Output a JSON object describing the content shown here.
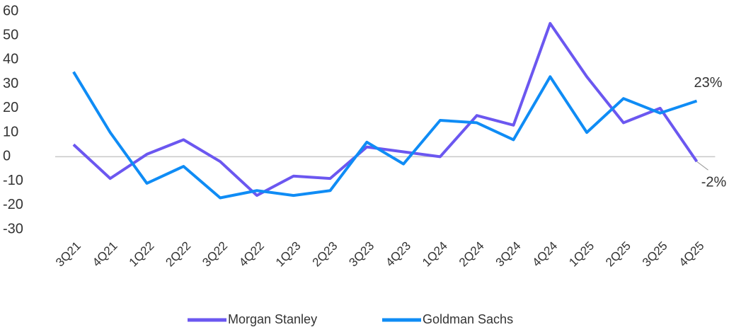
{
  "chart_data": {
    "type": "line",
    "categories": [
      "3Q21",
      "4Q21",
      "1Q22",
      "2Q22",
      "3Q22",
      "4Q22",
      "1Q23",
      "2Q23",
      "3Q23",
      "4Q23",
      "1Q24",
      "2Q24",
      "3Q24",
      "4Q24",
      "1Q25",
      "2Q25",
      "3Q25",
      "4Q25"
    ],
    "series": [
      {
        "name": "Morgan Stanley",
        "color": "#6b57f0",
        "values": [
          5,
          -9,
          1,
          7,
          -2,
          -16,
          -8,
          -9,
          4,
          2,
          0,
          17,
          13,
          55,
          33,
          14,
          20,
          -2
        ],
        "value_labels": [
          null,
          null,
          null,
          null,
          null,
          null,
          null,
          null,
          null,
          null,
          null,
          null,
          null,
          null,
          null,
          null,
          null,
          "-2%"
        ]
      },
      {
        "name": "Goldman Sachs",
        "color": "#0f8cf5",
        "values": [
          35,
          10,
          -11,
          -4,
          -17,
          -14,
          -16,
          -14,
          6,
          -3,
          15,
          14,
          7,
          33,
          10,
          24,
          18,
          23
        ],
        "value_labels": [
          null,
          null,
          null,
          null,
          null,
          null,
          null,
          null,
          null,
          null,
          null,
          null,
          null,
          null,
          null,
          null,
          null,
          "23%"
        ]
      }
    ],
    "ylim": [
      -30,
      60
    ],
    "yticks": [
      60,
      50,
      40,
      30,
      20,
      10,
      0,
      -10,
      -20,
      -30
    ],
    "grid": false,
    "legend": "bottom"
  }
}
